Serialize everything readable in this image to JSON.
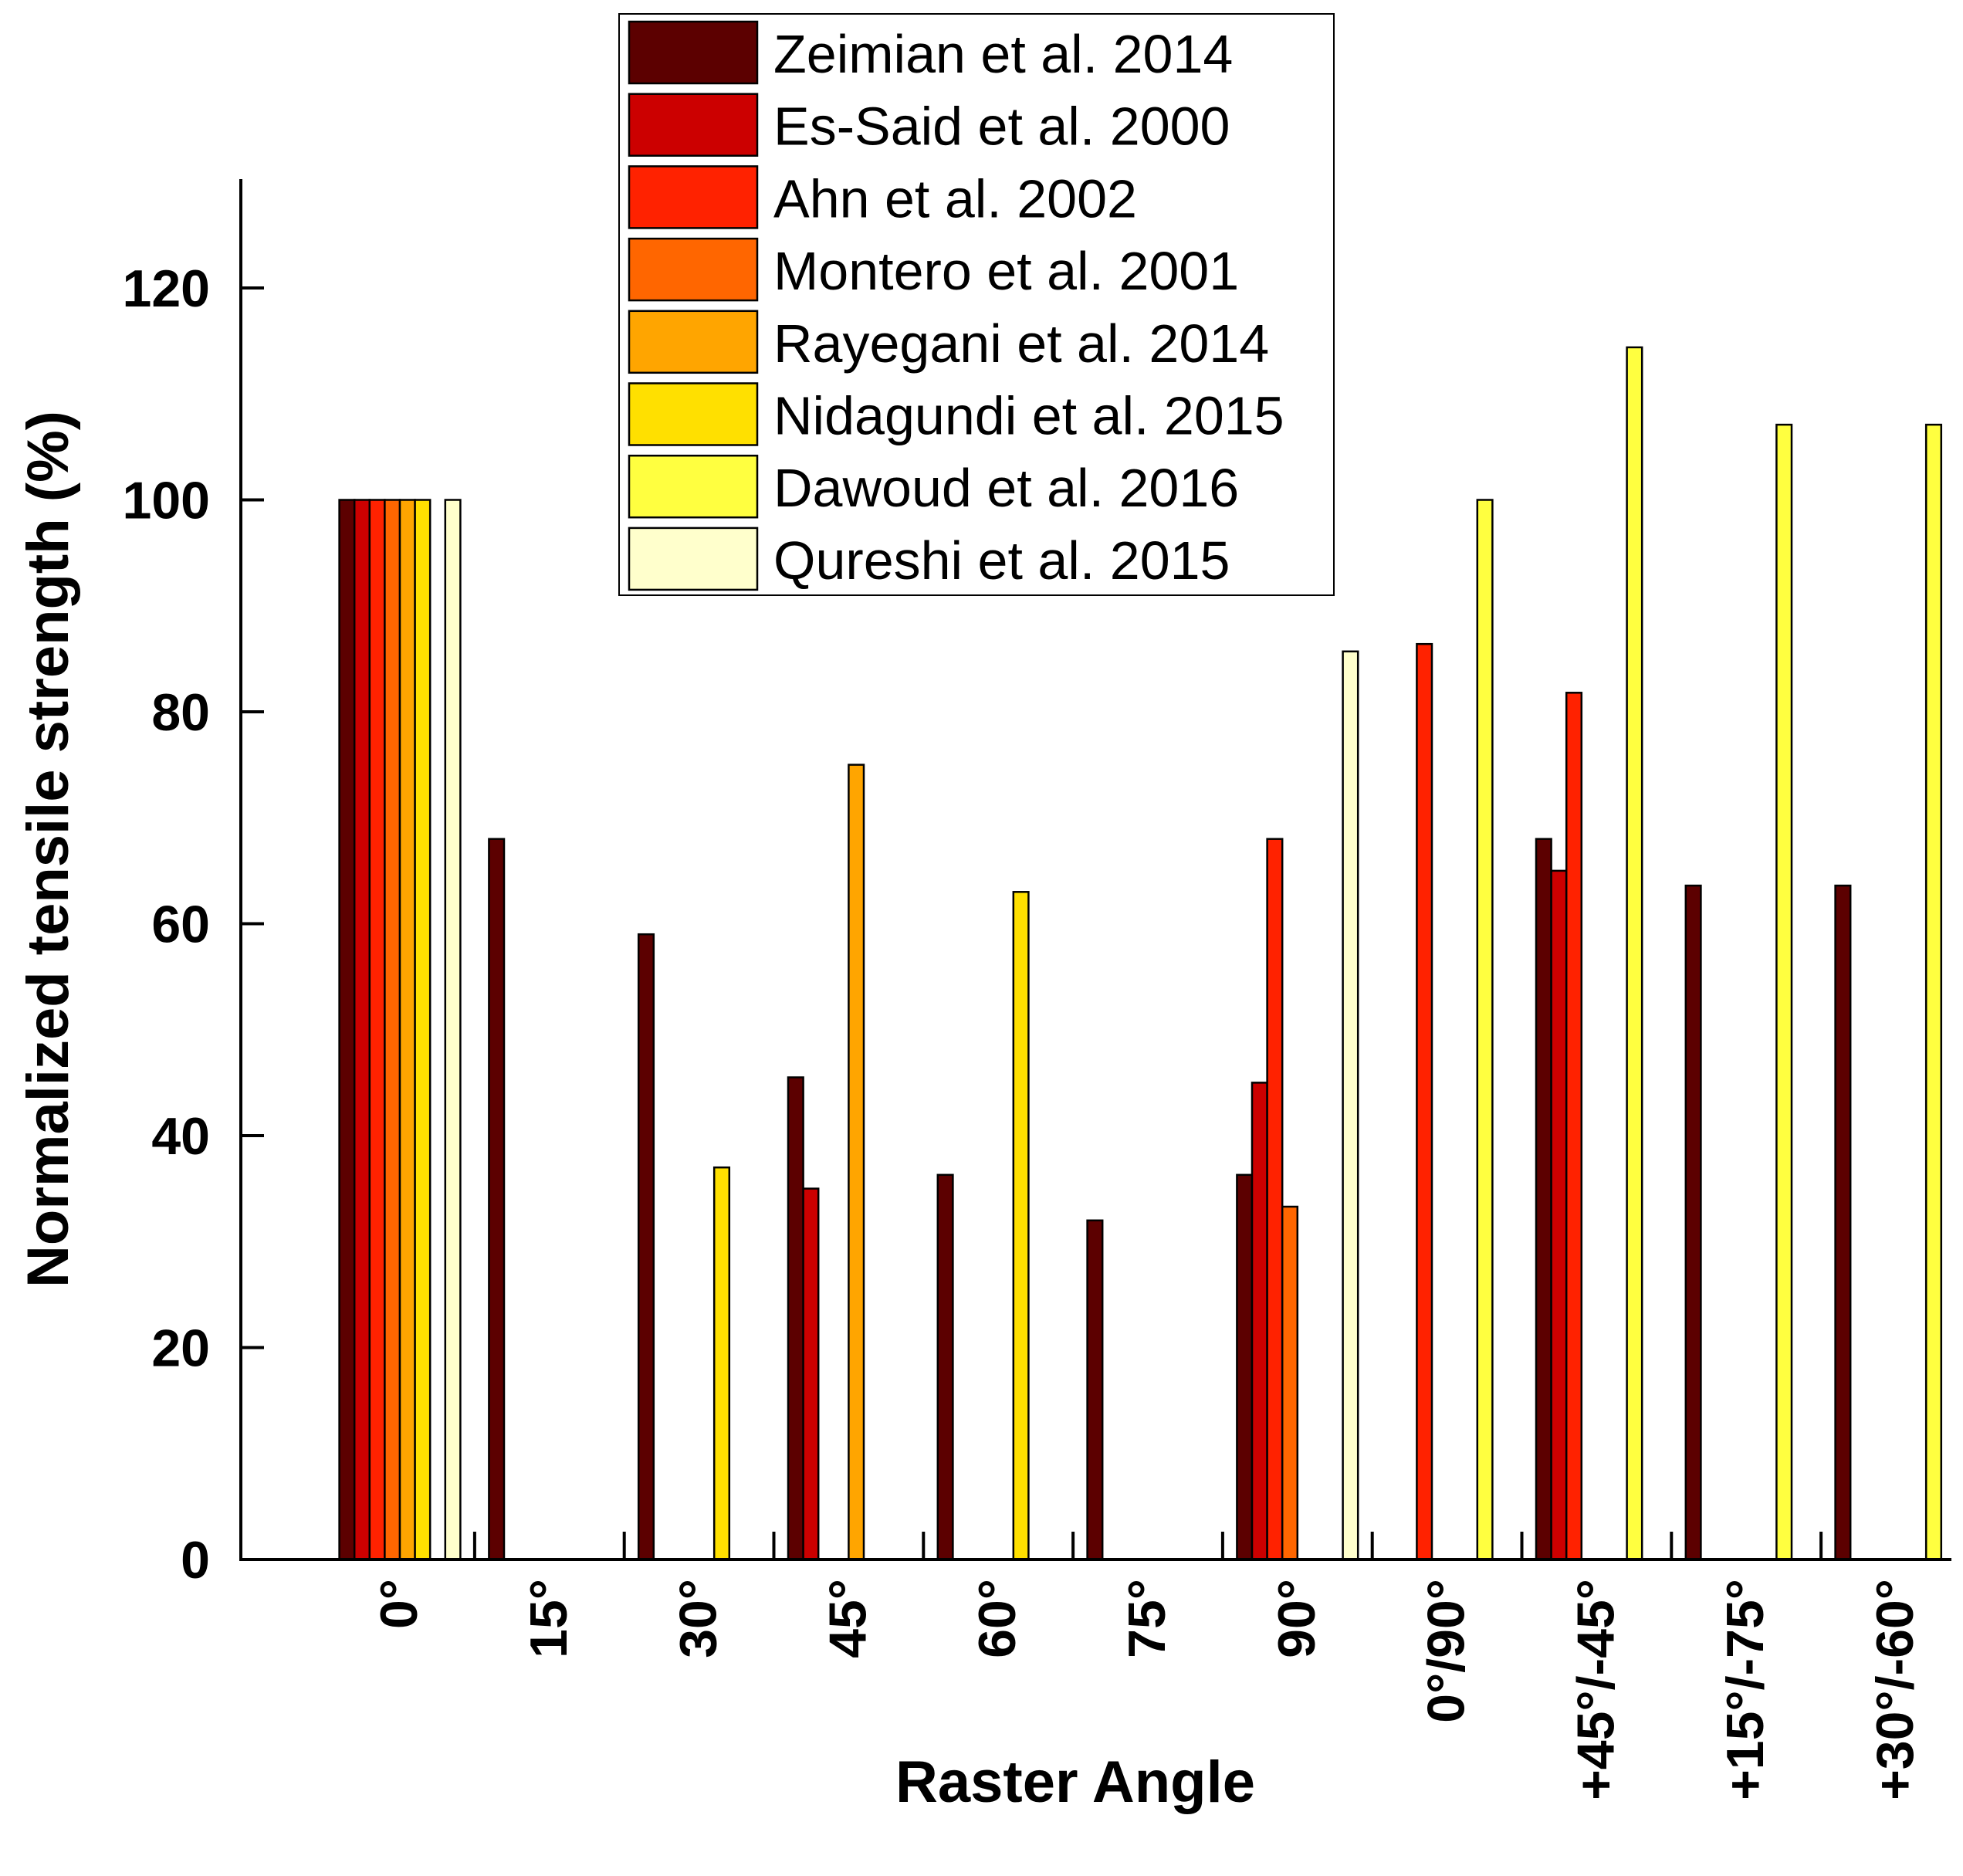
{
  "chart_data": {
    "type": "bar",
    "title": "",
    "xlabel": "Raster Angle",
    "ylabel": "Normalized tensile strength (%)",
    "ylim": [
      0,
      130
    ],
    "yticks": [
      "0",
      "20",
      "40",
      "60",
      "80",
      "100",
      "120"
    ],
    "categories": [
      "0°",
      "15°",
      "30°",
      "45°",
      "60°",
      "75°",
      "90°",
      "0°/90°",
      "+45°/-45°",
      "+15°/-75°",
      "+30°/-60°"
    ],
    "legend_position": "top-center",
    "series": [
      {
        "name": "Zeimian et al. 2014",
        "color": "#5c0000",
        "values": [
          100,
          68,
          59,
          45.5,
          36.3,
          32,
          36.3,
          null,
          68,
          63.6,
          63.6
        ]
      },
      {
        "name": "Es-Said et al. 2000",
        "color": "#cc0000",
        "values": [
          100,
          null,
          null,
          35,
          null,
          null,
          45,
          null,
          65,
          null,
          null
        ]
      },
      {
        "name": "Ahn et al. 2002",
        "color": "#ff2200",
        "values": [
          100,
          null,
          null,
          null,
          null,
          null,
          68,
          86.4,
          81.8,
          null,
          null
        ]
      },
      {
        "name": "Montero et al. 2001",
        "color": "#ff6600",
        "values": [
          100,
          null,
          null,
          null,
          null,
          null,
          33.3,
          null,
          null,
          null,
          null
        ]
      },
      {
        "name": "Rayegani et al. 2014",
        "color": "#ffa500",
        "values": [
          100,
          null,
          null,
          75,
          null,
          null,
          null,
          null,
          null,
          null,
          null
        ]
      },
      {
        "name": "Nidagundi et al. 2015",
        "color": "#ffe000",
        "values": [
          100,
          null,
          37,
          null,
          63,
          null,
          null,
          null,
          null,
          null,
          null
        ]
      },
      {
        "name": "Dawoud et al. 2016",
        "color": "#ffff40",
        "values": [
          null,
          null,
          null,
          null,
          null,
          null,
          null,
          100,
          114.4,
          107.1,
          107.1
        ]
      },
      {
        "name": "Qureshi et al. 2015",
        "color": "#ffffcc",
        "values": [
          100,
          null,
          null,
          null,
          null,
          null,
          85.7,
          null,
          null,
          null,
          null
        ]
      }
    ]
  }
}
